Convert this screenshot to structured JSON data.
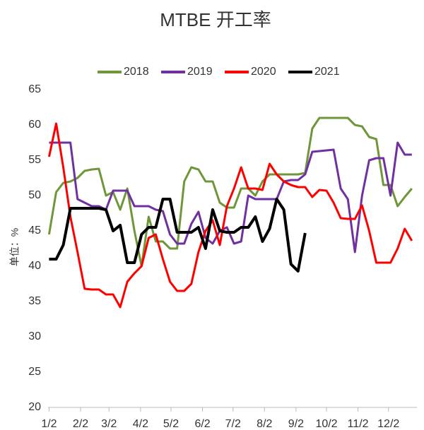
{
  "chart_data": {
    "type": "line",
    "title": "MTBE 开工率",
    "y_label": "单位：%",
    "x": [
      0,
      7,
      14,
      21,
      28,
      35,
      42,
      49,
      56,
      63,
      70,
      77,
      84,
      91,
      98,
      105,
      112,
      119,
      126,
      133,
      140,
      147,
      154,
      161,
      168,
      175,
      182,
      189,
      196,
      203,
      210,
      217,
      224,
      231,
      238,
      245,
      252,
      259,
      266,
      273,
      280,
      287,
      294,
      301,
      308,
      315,
      322,
      329,
      336,
      343,
      350,
      357
    ],
    "xlim": [
      -1,
      362
    ],
    "xticks": [
      {
        "value": 0,
        "label": "1/2"
      },
      {
        "value": 31,
        "label": "2/2"
      },
      {
        "value": 59,
        "label": "3/2"
      },
      {
        "value": 90,
        "label": "4/2"
      },
      {
        "value": 120,
        "label": "5/2"
      },
      {
        "value": 151,
        "label": "6/2"
      },
      {
        "value": 181,
        "label": "7/2"
      },
      {
        "value": 212,
        "label": "8/2"
      },
      {
        "value": 243,
        "label": "9/2"
      },
      {
        "value": 273,
        "label": "10/2"
      },
      {
        "value": 304,
        "label": "11/2"
      },
      {
        "value": 334,
        "label": "12/2"
      }
    ],
    "ylim": [
      20,
      65
    ],
    "yticks": [
      20,
      25,
      30,
      35,
      40,
      45,
      50,
      55,
      60,
      65
    ],
    "grid": false,
    "legend": "top",
    "series": [
      {
        "name": "2018",
        "color": "#70963a",
        "values": [
          44.5,
          50.5,
          51.8,
          52,
          52.5,
          53.5,
          53.7,
          53.8,
          50,
          50.5,
          48,
          51,
          45,
          40,
          47,
          43.5,
          43.5,
          42.5,
          42.5,
          52,
          54,
          53.7,
          52,
          52,
          49,
          48.3,
          48.3,
          51,
          51,
          50,
          52,
          53,
          53,
          53,
          53,
          53,
          53.2,
          59.5,
          61,
          61,
          61,
          61,
          61,
          60,
          59.8,
          58.3,
          58,
          51.5,
          51.5,
          48.5,
          49.8,
          51
        ]
      },
      {
        "name": "2019",
        "color": "#7030a0",
        "values": [
          57.5,
          57.5,
          57.5,
          57.5,
          49.5,
          49,
          48.5,
          48.5,
          48,
          50.7,
          50.7,
          50.7,
          48.5,
          48.5,
          48.5,
          48,
          47.8,
          44.5,
          43.2,
          43.2,
          46,
          47.7,
          44,
          43.2,
          45,
          45.5,
          43.2,
          43.5,
          50,
          49.5,
          49.5,
          49.5,
          49.5,
          52,
          52.2,
          52.2,
          53,
          56.2,
          56.3,
          56.4,
          56.5,
          51,
          49.5,
          42,
          50,
          55,
          55.3,
          55.3,
          50,
          57.5,
          55.8,
          55.8
        ]
      },
      {
        "name": "2020",
        "color": "#ff0000",
        "values": [
          55.5,
          60.2,
          54,
          47,
          42,
          36.8,
          36.7,
          36.7,
          36,
          36,
          34.2,
          37.8,
          39,
          40,
          44,
          44.5,
          41,
          37.8,
          36.5,
          36.5,
          37.5,
          42,
          45,
          46.5,
          43,
          48.5,
          51,
          54,
          51,
          51,
          50.8,
          54.5,
          53,
          52,
          51.5,
          51.2,
          51.2,
          49.8,
          50.8,
          50.7,
          49,
          46.8,
          46.7,
          46.7,
          48.6,
          45,
          40.5,
          40.5,
          40.5,
          42.5,
          45.3,
          43.6
        ]
      },
      {
        "name": "2021",
        "color": "#000000",
        "values": [
          41,
          41,
          43,
          48.2,
          48.2,
          48.2,
          48.2,
          48.2,
          48,
          45,
          45.8,
          40.5,
          40.5,
          44.5,
          45.5,
          45.5,
          49.5,
          49.5,
          44.8,
          44.8,
          44.8,
          45.5,
          42.5,
          48,
          45,
          44.8,
          44.8,
          45.5,
          45.5,
          47,
          43.5,
          45.3,
          49.5,
          48,
          40.3,
          39.3,
          44.7,
          null,
          null,
          null,
          null,
          null,
          null,
          null,
          null,
          null,
          null,
          null,
          null,
          null,
          null,
          null
        ]
      }
    ]
  }
}
